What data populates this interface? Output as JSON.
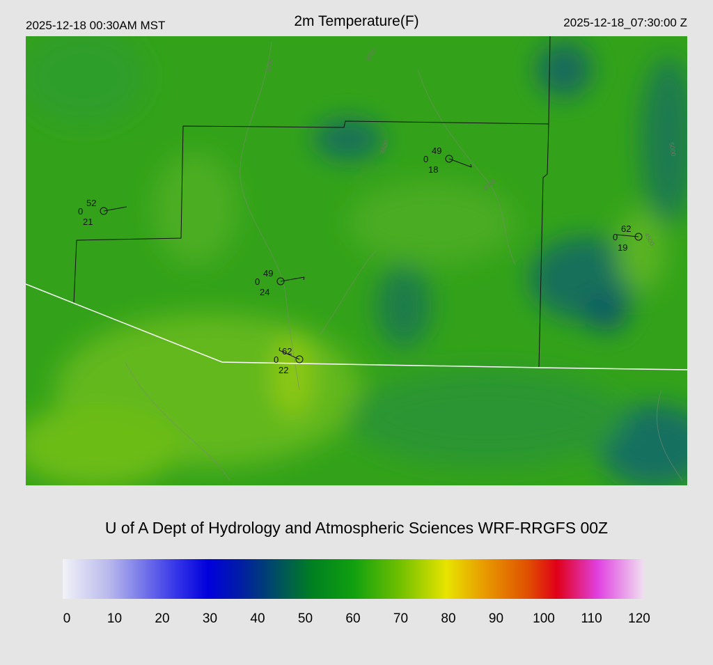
{
  "header": {
    "local_time": "2025-12-18 00:30AM MST",
    "title": "2m Temperature(F)",
    "utc_time": "2025-12-18_07:30:00 Z"
  },
  "map": {
    "stations": [
      {
        "temp": 52,
        "calm": 0,
        "dewpoint": 21
      },
      {
        "temp": 49,
        "calm": 0,
        "dewpoint": 18
      },
      {
        "temp": 62,
        "calm": 0,
        "dewpoint": 19
      },
      {
        "temp": 49,
        "calm": 0,
        "dewpoint": 24
      },
      {
        "temp": 62,
        "calm": 0,
        "dewpoint": 22
      }
    ],
    "contour_labels": [
      "5000",
      "5000",
      "4500",
      "4000",
      "5000",
      "4500"
    ]
  },
  "footer": {
    "credit": "U of A Dept of Hydrology and Atmospheric Sciences WRF-RRGFS 00Z"
  },
  "colorbar": {
    "ticks": [
      0,
      10,
      20,
      30,
      40,
      50,
      60,
      70,
      80,
      90,
      100,
      110,
      120
    ]
  }
}
